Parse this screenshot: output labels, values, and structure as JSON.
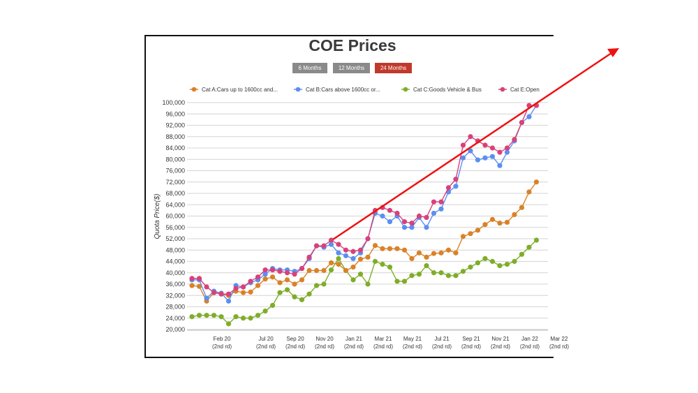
{
  "title": "COE Prices",
  "range_buttons": [
    {
      "label": "6 Months",
      "active": false
    },
    {
      "label": "12 Months",
      "active": false
    },
    {
      "label": "24 Months",
      "active": true
    }
  ],
  "colors": {
    "button_inactive": "#8a8a8a",
    "button_active": "#c0392b",
    "cat_a": "#d98227",
    "cat_b": "#5b8ff0",
    "cat_c": "#7fad29",
    "cat_e": "#d8417a",
    "arrow": "#ee1111"
  },
  "chart_data": {
    "type": "line",
    "title": "COE Prices",
    "ylabel": "Quota Price($)",
    "xlabel": "",
    "ylim": [
      20000,
      100000
    ],
    "yticks": [
      20000,
      24000,
      28000,
      32000,
      36000,
      40000,
      44000,
      48000,
      52000,
      56000,
      60000,
      64000,
      68000,
      72000,
      76000,
      80000,
      84000,
      88000,
      92000,
      96000,
      100000
    ],
    "ytick_labels": [
      "20,000",
      "24,000",
      "28,000",
      "32,000",
      "36,000",
      "40,000",
      "44,000",
      "48,000",
      "52,000",
      "56,000",
      "60,000",
      "64,000",
      "68,000",
      "72,000",
      "76,000",
      "80,000",
      "84,000",
      "88,000",
      "92,000",
      "96,000",
      "100,000"
    ],
    "x_tick_labels": [
      {
        "index": 4,
        "line1": "Feb 20",
        "line2": "(2nd rd)"
      },
      {
        "index": 10,
        "line1": "Jul 20",
        "line2": "(2nd rd)"
      },
      {
        "index": 14,
        "line1": "Sep 20",
        "line2": "(2nd rd)"
      },
      {
        "index": 18,
        "line1": "Nov 20",
        "line2": "(2nd rd)"
      },
      {
        "index": 22,
        "line1": "Jan 21",
        "line2": "(2nd rd)"
      },
      {
        "index": 26,
        "line1": "Mar 21",
        "line2": "(2nd rd)"
      },
      {
        "index": 30,
        "line1": "May 21",
        "line2": "(2nd rd)"
      },
      {
        "index": 34,
        "line1": "Jul 21",
        "line2": "(2nd rd)"
      },
      {
        "index": 38,
        "line1": "Sep 21",
        "line2": "(2nd rd)"
      },
      {
        "index": 42,
        "line1": "Nov 21",
        "line2": "(2nd rd)"
      },
      {
        "index": 46,
        "line1": "Jan 22",
        "line2": "(2nd rd)"
      },
      {
        "index": 50,
        "line1": "Mar 22",
        "line2": "(2nd rd)"
      }
    ],
    "grid": true,
    "legend_position": "top",
    "series": [
      {
        "name": "Cat A:Cars up to 1600cc and...",
        "color_key": "cat_a",
        "values": [
          35500,
          35200,
          30000,
          33000,
          32500,
          32000,
          33500,
          33000,
          33200,
          35500,
          37800,
          38500,
          36500,
          37500,
          36000,
          37500,
          40800,
          40800,
          40800,
          43500,
          43000,
          40800,
          42000,
          44800,
          45500,
          49600,
          48500,
          48500,
          48500,
          48000,
          45000,
          47000,
          45500,
          46800,
          47000,
          48000,
          47000,
          52800,
          53800,
          55000,
          57000,
          58800,
          57500,
          57800,
          60500,
          63000,
          68500,
          72000
        ]
      },
      {
        "name": "Cat B:Cars above 1600cc or...",
        "color_key": "cat_b",
        "values": [
          37500,
          37500,
          31000,
          33500,
          32800,
          30000,
          35500,
          35000,
          36500,
          37500,
          39500,
          41500,
          41000,
          41000,
          40500,
          41500,
          45000,
          49500,
          49000,
          50000,
          47000,
          46000,
          45000,
          47000,
          52000,
          61000,
          60000,
          58000,
          60000,
          56000,
          56000,
          59500,
          56000,
          61000,
          62500,
          68500,
          70500,
          80500,
          83000,
          79800,
          80500,
          81000,
          77800,
          82500,
          86500,
          93000,
          95000,
          99000
        ]
      },
      {
        "name": "Cat C:Goods Vehicle & Bus",
        "color_key": "cat_c",
        "values": [
          24500,
          25000,
          25000,
          25000,
          24500,
          22000,
          24500,
          24000,
          24000,
          25000,
          26500,
          28500,
          33000,
          34000,
          31500,
          30500,
          32500,
          35500,
          36000,
          41000,
          45000,
          40800,
          37500,
          39500,
          36000,
          44000,
          43000,
          42000,
          37000,
          37000,
          39000,
          39500,
          42500,
          40000,
          40000,
          39000,
          39000,
          40500,
          42000,
          43500,
          45000,
          44000,
          42500,
          43000,
          44000,
          46500,
          49000,
          51500
        ]
      },
      {
        "name": "Cat E:Open",
        "color_key": "cat_e",
        "values": [
          38000,
          38000,
          35000,
          33000,
          32500,
          32500,
          34500,
          35000,
          37000,
          38500,
          41000,
          41000,
          40500,
          40000,
          39500,
          41500,
          45500,
          49500,
          49500,
          51500,
          50000,
          48000,
          47500,
          48000,
          52000,
          62000,
          63000,
          62000,
          61000,
          58000,
          57500,
          60000,
          59500,
          65000,
          65000,
          70000,
          73000,
          85000,
          88000,
          86500,
          85000,
          84000,
          82500,
          84000,
          87000,
          93000,
          99000,
          99000
        ]
      }
    ]
  }
}
